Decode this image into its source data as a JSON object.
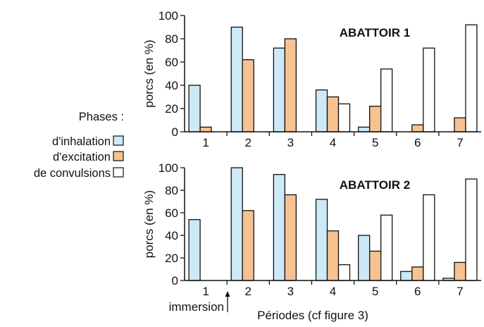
{
  "legend": {
    "title": "Phases :",
    "items": [
      {
        "label": "d'inhalation",
        "color": "#cde8f6"
      },
      {
        "label": "d'excitation",
        "color": "#f7c190"
      },
      {
        "label": "de convulsions",
        "color": "#ffffff"
      }
    ]
  },
  "x_axis_label": "Périodes (cf figure 3)",
  "annotation": "immersion",
  "chart_data": [
    {
      "type": "bar",
      "title": "ABATTOIR 1",
      "ylabel": "porcs (en %)",
      "xlabel": "",
      "ylim": [
        0,
        100
      ],
      "yticks": [
        0,
        20,
        40,
        60,
        80,
        100
      ],
      "categories": [
        "1",
        "2",
        "3",
        "4",
        "5",
        "6",
        "7"
      ],
      "series": [
        {
          "name": "d'inhalation",
          "color": "#cde8f6",
          "values": [
            40,
            90,
            72,
            36,
            4,
            null,
            null
          ]
        },
        {
          "name": "d'excitation",
          "color": "#f7c190",
          "values": [
            4,
            62,
            80,
            30,
            22,
            6,
            12
          ]
        },
        {
          "name": "de convulsions",
          "color": "#ffffff",
          "values": [
            null,
            null,
            null,
            24,
            54,
            72,
            92
          ]
        }
      ],
      "legend": "left"
    },
    {
      "type": "bar",
      "title": "ABATTOIR 2",
      "ylabel": "porcs (en %)",
      "xlabel": "Périodes (cf figure 3)",
      "ylim": [
        0,
        100
      ],
      "yticks": [
        0,
        20,
        40,
        60,
        80,
        100
      ],
      "categories": [
        "1",
        "2",
        "3",
        "4",
        "5",
        "6",
        "7"
      ],
      "series": [
        {
          "name": "d'inhalation",
          "color": "#cde8f6",
          "values": [
            54,
            100,
            94,
            72,
            40,
            8,
            2
          ]
        },
        {
          "name": "d'excitation",
          "color": "#f7c190",
          "values": [
            null,
            62,
            76,
            44,
            26,
            12,
            16
          ]
        },
        {
          "name": "de convulsions",
          "color": "#ffffff",
          "values": [
            null,
            null,
            null,
            14,
            58,
            76,
            90
          ]
        }
      ],
      "legend": "left",
      "annotation": "immersion"
    }
  ]
}
